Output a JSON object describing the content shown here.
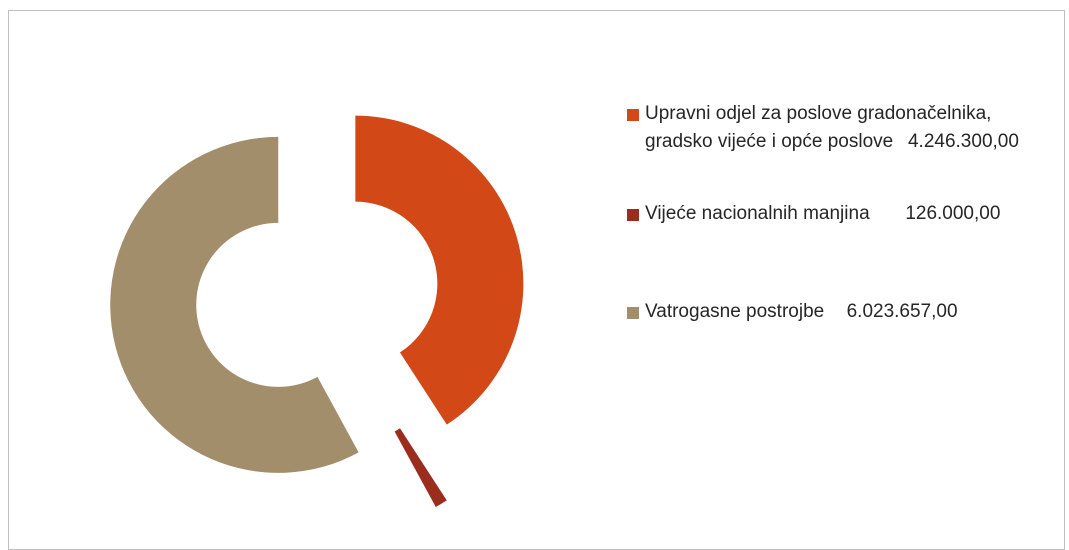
{
  "chart_data": {
    "type": "donut",
    "categories": [
      "Upravni odjel za poslove gradonačelnika, gradsko vijeće i opće poslove",
      "Vijeće nacionalnih manjina",
      "Vatrogasne postrojbe"
    ],
    "values": [
      4246300,
      126000,
      6023657
    ],
    "value_labels": [
      "4.246.300,00",
      "126.000,00",
      "6.023.657,00"
    ],
    "colors": [
      "#d34817",
      "#9b2d1f",
      "#a28e6a"
    ],
    "legend": "right"
  }
}
